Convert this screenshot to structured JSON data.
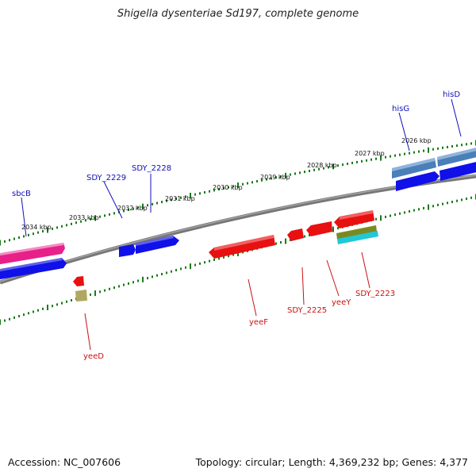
{
  "title": "Shigella dysenteriae Sd197, complete genome",
  "accession": "Accession: NC_007606",
  "summary": "Topology: circular; Length: 4,369,232 bp; Genes: 4,377",
  "colors": {
    "backbone": "#777777",
    "tick": "#1a7a1a",
    "cds_blue": "#1010e8",
    "cds_steel": "#4a7fb8",
    "cds_pink": "#e8208a",
    "cds_red": "#e81010",
    "cds_olive": "#7a8a20",
    "cds_cyan": "#20c8d8",
    "cds_khaki": "#b0a860",
    "label_blue": "#1010b8",
    "label_red": "#cc1010"
  },
  "kbp_labels": [
    "2034 kbp",
    "2033 kbp",
    "2032 kbp",
    "2031 kbp",
    "2030 kbp",
    "2029 kbp",
    "2028 kbp",
    "2027 kbp",
    "2026 kbp"
  ],
  "gene_labels_top": [
    "sbcB",
    "SDY_2229",
    "SDY_2228",
    "hisG",
    "hisD"
  ],
  "gene_labels_bottom": [
    "yeeD",
    "yeeF",
    "SDY_2225",
    "yeeY",
    "SDY_2223"
  ]
}
